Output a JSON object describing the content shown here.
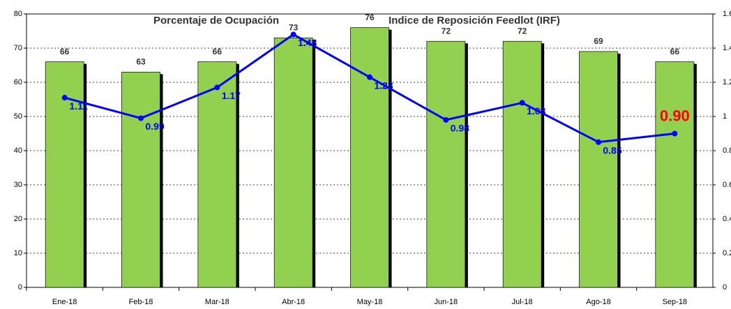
{
  "chart_data": {
    "type": "bar-line",
    "categories": [
      "Ene-18",
      "Feb-18",
      "Mar-18",
      "Abr-18",
      "May-18",
      "Jun-18",
      "Jul-18",
      "Ago-18",
      "Sep-18"
    ],
    "series": [
      {
        "name": "Porcentaje de Ocupación",
        "type": "bar",
        "color": "#92d050",
        "values": [
          66,
          63,
          66,
          73,
          76,
          72,
          72,
          69,
          66
        ]
      },
      {
        "name": "Indice de Reposición Feedlot (IRF)",
        "type": "line",
        "axis": "y2",
        "color": "#0000ff",
        "values": [
          1.11,
          0.99,
          1.17,
          1.48,
          1.23,
          0.98,
          1.08,
          0.85,
          0.9
        ],
        "value_labels": [
          "1.11",
          "0.99",
          "1.17",
          "1.48",
          "1.23",
          "0.98",
          "1.08",
          "0.85",
          "0.90"
        ],
        "highlight_color": "#ff0000"
      }
    ],
    "ylim": [
      0,
      80
    ],
    "yticks": [
      0,
      10,
      20,
      30,
      40,
      50,
      60,
      70,
      80
    ],
    "y2lim": [
      0,
      1.6
    ],
    "y2ticks": [
      0,
      {
        "value": 0.2,
        "label": "0.2"
      },
      {
        "value": 0.4,
        "label": "0.4"
      },
      {
        "value": 0.6,
        "label": "0.6"
      },
      {
        "value": 0.8,
        "label": "0.8"
      },
      1,
      {
        "value": 1.2,
        "label": "1.2"
      },
      {
        "value": 1.4,
        "label": "1.4"
      },
      {
        "value": 1.6,
        "label": "1.6"
      }
    ],
    "grid": true
  }
}
